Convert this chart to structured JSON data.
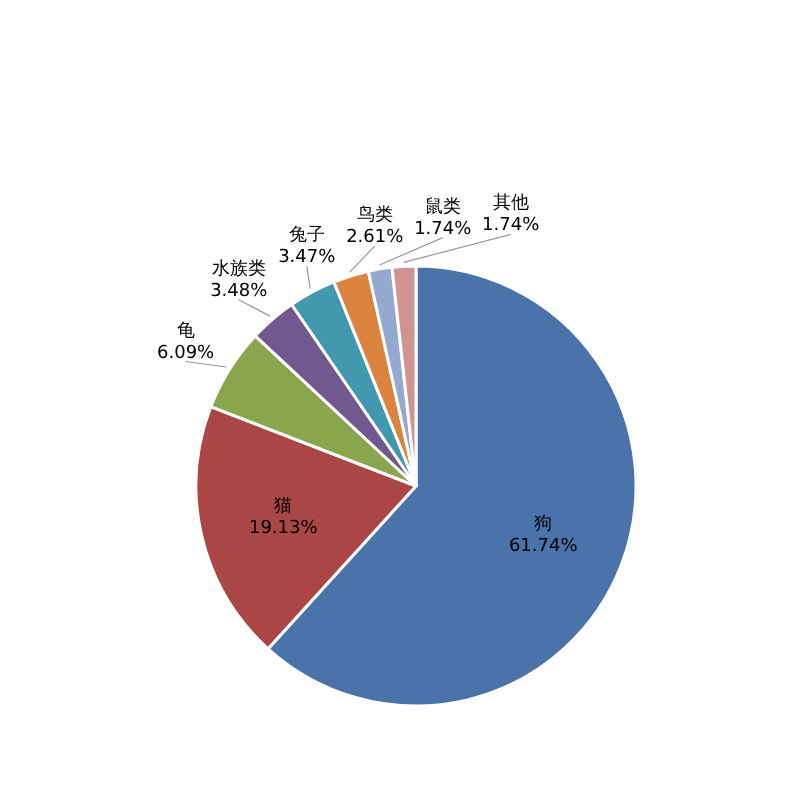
{
  "chart_data": {
    "type": "pie",
    "categories": [
      "狗",
      "猫",
      "龟",
      "水族类",
      "兔子",
      "鸟类",
      "鼠类",
      "其他"
    ],
    "values": [
      61.74,
      19.13,
      6.09,
      3.48,
      3.47,
      2.61,
      1.74,
      1.74
    ],
    "colors": [
      "#4a73aa",
      "#aa4643",
      "#89a54e",
      "#71588f",
      "#4198af",
      "#db843d",
      "#93a9cf",
      "#d19392"
    ],
    "value_labels": [
      "61.74%",
      "19.13%",
      "6.09%",
      "3.48%",
      "3.47%",
      "2.61%",
      "1.74%",
      "1.74%"
    ]
  }
}
